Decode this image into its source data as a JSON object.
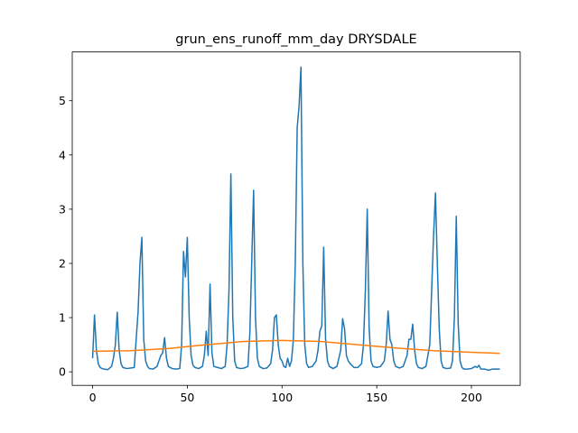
{
  "chart_data": {
    "type": "line",
    "title": "grun_ens_runoff_mm_day DRYSDALE",
    "xlim": [
      -10.75,
      225.75
    ],
    "xticks": [
      0,
      50,
      100,
      150,
      200
    ],
    "ylim": [
      -0.25,
      5.9
    ],
    "yticks": [
      0,
      1,
      2,
      3,
      4,
      5
    ],
    "series": [
      {
        "color": "#1f77b4",
        "x": [
          0,
          1,
          2,
          3,
          4,
          5,
          6,
          8,
          10,
          11,
          12,
          13,
          14,
          15,
          16,
          18,
          20,
          22,
          23,
          24,
          25,
          26,
          27,
          28,
          29,
          30,
          32,
          34,
          35,
          36,
          37,
          38,
          39,
          40,
          42,
          44,
          46,
          47,
          48,
          49,
          50,
          51,
          52,
          53,
          54,
          56,
          58,
          59,
          60,
          61,
          62,
          63,
          64,
          66,
          68,
          70,
          71,
          72,
          73,
          74,
          75,
          76,
          78,
          80,
          82,
          83,
          84,
          85,
          86,
          87,
          88,
          90,
          92,
          94,
          95,
          96,
          97,
          98,
          99,
          100,
          101,
          102,
          103,
          104,
          105,
          106,
          107,
          108,
          109,
          110,
          111,
          112,
          113,
          114,
          116,
          118,
          119,
          120,
          121,
          122,
          123,
          124,
          125,
          127,
          129,
          131,
          132,
          133,
          134,
          135,
          136,
          138,
          140,
          142,
          143,
          144,
          145,
          146,
          147,
          148,
          150,
          152,
          154,
          155,
          156,
          157,
          158,
          159,
          160,
          162,
          164,
          166,
          167,
          168,
          169,
          170,
          171,
          172,
          174,
          176,
          178,
          179,
          180,
          181,
          182,
          183,
          184,
          185,
          187,
          189,
          190,
          191,
          192,
          193,
          194,
          195,
          196,
          198,
          200,
          202,
          203,
          204,
          205,
          207,
          209,
          211,
          213,
          215
        ],
        "values": [
          0.25,
          1.05,
          0.4,
          0.15,
          0.08,
          0.06,
          0.05,
          0.04,
          0.1,
          0.25,
          0.5,
          1.1,
          0.4,
          0.15,
          0.08,
          0.06,
          0.07,
          0.08,
          0.6,
          1.1,
          2.0,
          2.48,
          0.6,
          0.2,
          0.1,
          0.06,
          0.05,
          0.1,
          0.2,
          0.3,
          0.35,
          0.63,
          0.25,
          0.1,
          0.06,
          0.05,
          0.06,
          0.5,
          2.22,
          1.75,
          2.48,
          1.0,
          0.3,
          0.12,
          0.08,
          0.06,
          0.1,
          0.3,
          0.75,
          0.3,
          1.62,
          0.35,
          0.1,
          0.08,
          0.06,
          0.1,
          0.5,
          1.5,
          3.65,
          1.0,
          0.2,
          0.08,
          0.06,
          0.07,
          0.1,
          0.7,
          2.0,
          3.35,
          1.0,
          0.25,
          0.1,
          0.06,
          0.07,
          0.15,
          0.4,
          1.0,
          1.05,
          0.5,
          0.25,
          0.2,
          0.1,
          0.08,
          0.25,
          0.1,
          0.2,
          0.6,
          2.0,
          4.5,
          4.9,
          5.62,
          2.0,
          0.5,
          0.15,
          0.08,
          0.1,
          0.2,
          0.4,
          0.75,
          0.85,
          2.3,
          0.6,
          0.2,
          0.1,
          0.06,
          0.1,
          0.4,
          0.98,
          0.8,
          0.3,
          0.2,
          0.15,
          0.08,
          0.08,
          0.15,
          0.5,
          1.5,
          3.0,
          0.8,
          0.2,
          0.1,
          0.08,
          0.1,
          0.2,
          0.5,
          1.12,
          0.6,
          0.5,
          0.2,
          0.1,
          0.07,
          0.1,
          0.3,
          0.6,
          0.6,
          0.88,
          0.4,
          0.15,
          0.08,
          0.06,
          0.1,
          0.5,
          1.5,
          2.5,
          3.3,
          2.0,
          0.8,
          0.2,
          0.08,
          0.06,
          0.07,
          0.2,
          1.0,
          2.87,
          0.9,
          0.2,
          0.08,
          0.05,
          0.05,
          0.06,
          0.1,
          0.08,
          0.12,
          0.05,
          0.05,
          0.03,
          0.05,
          0.05,
          0.05
        ]
      },
      {
        "color": "#ff7f0e",
        "x": [
          0,
          20,
          40,
          60,
          80,
          100,
          120,
          140,
          160,
          180,
          200,
          215
        ],
        "values": [
          0.38,
          0.39,
          0.43,
          0.5,
          0.56,
          0.58,
          0.56,
          0.5,
          0.44,
          0.39,
          0.36,
          0.34
        ]
      }
    ]
  }
}
